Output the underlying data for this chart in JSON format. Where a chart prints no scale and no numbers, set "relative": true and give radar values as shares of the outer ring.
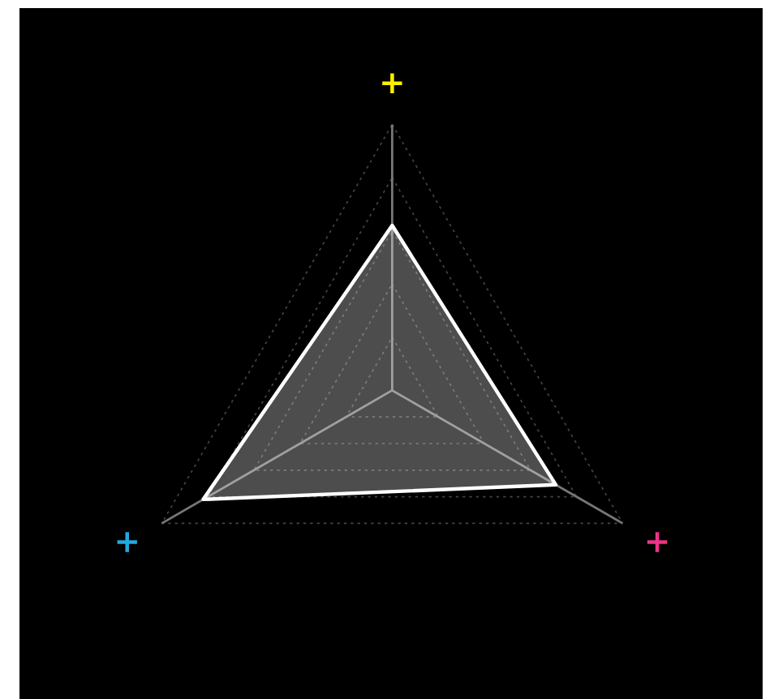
{
  "chart_data": {
    "type": "radar",
    "relative": true,
    "categories": [
      "+",
      "+",
      "+"
    ],
    "colors": [
      "#ffee00",
      "#ee3388",
      "#22aadd"
    ],
    "series": [
      {
        "color": "#ffffff",
        "values": [
          0.62,
          0.71,
          0.82
        ]
      }
    ],
    "grid": true,
    "marker": "none",
    "line_style": "solid"
  }
}
